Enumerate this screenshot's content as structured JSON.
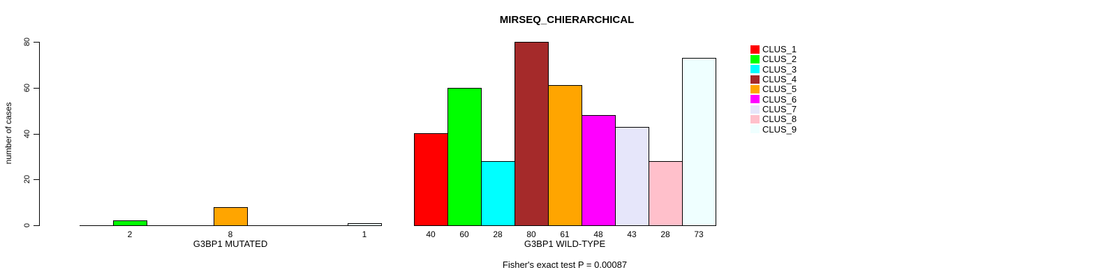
{
  "chart_data": {
    "type": "bar",
    "title": "MIRSEQ_CHIERARCHICAL",
    "ylabel": "number of cases",
    "ylim": [
      0,
      80
    ],
    "yticks": [
      "0",
      "20",
      "40",
      "60",
      "80"
    ],
    "grid": false,
    "legend_position": "right",
    "clusters": [
      "CLUS_1",
      "CLUS_2",
      "CLUS_3",
      "CLUS_4",
      "CLUS_5",
      "CLUS_6",
      "CLUS_7",
      "CLUS_8",
      "CLUS_9"
    ],
    "colors": [
      "#FF0000",
      "#00FF00",
      "#00FFFF",
      "#A52A2A",
      "#FFA500",
      "#FF00FF",
      "#E6E6FA",
      "#FFC0CB",
      "#EFFFFF"
    ],
    "groups": [
      {
        "label": "G3BP1 MUTATED",
        "values": [
          0,
          2,
          0,
          0,
          8,
          0,
          0,
          0,
          1
        ]
      },
      {
        "label": "G3BP1 WILD-TYPE",
        "values": [
          40,
          60,
          28,
          80,
          61,
          48,
          43,
          28,
          73
        ]
      }
    ],
    "annotation": "Fisher's exact test P = 0.00087",
    "axis_color": "#000000",
    "background_color": "#FFFFFF"
  }
}
